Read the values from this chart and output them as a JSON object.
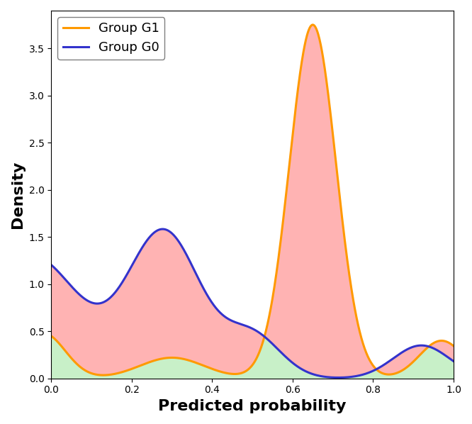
{
  "xlabel": "Predicted probability",
  "ylabel": "Density",
  "xlim": [
    0.0,
    1.0
  ],
  "ylim": [
    0.0,
    3.9
  ],
  "color_g1": "#ff9900",
  "color_g0": "#3333cc",
  "fill_red": "#ffb3b3",
  "fill_green": "#c8f0c8",
  "legend_g1": "Group G1",
  "legend_g0": "Group G0",
  "xlabel_fontsize": 16,
  "ylabel_fontsize": 16,
  "xlabel_fontweight": "bold",
  "ylabel_fontweight": "bold",
  "legend_fontsize": 13,
  "figsize": [
    6.66,
    5.98
  ],
  "dpi": 100
}
